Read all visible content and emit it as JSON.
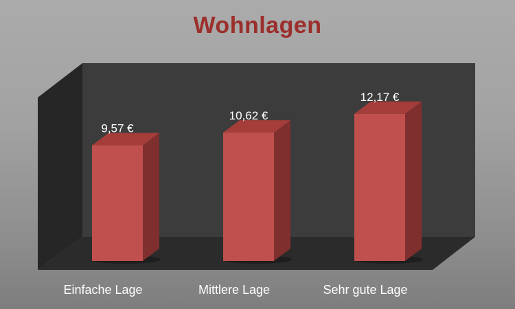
{
  "chart_data": {
    "type": "bar",
    "title": "Wohnlagen",
    "categories": [
      "Einfache Lage",
      "Mittlere Lage",
      "Sehr gute Lage"
    ],
    "values": [
      9.57,
      10.62,
      12.17
    ],
    "value_labels": [
      "9,57 €",
      "10,62 €",
      "12,17 €"
    ],
    "xlabel": "",
    "ylabel": "",
    "ylim": [
      0,
      14
    ],
    "grid": false,
    "style": "3d",
    "colors": {
      "bar_front": "#c0504d",
      "bar_side": "#7f2f2d",
      "bar_top": "#a53d3a",
      "back_wall": "#3c3c3c",
      "side_wall": "#262626",
      "floor": "#2b2b2b",
      "title": "#9b2f2c"
    }
  }
}
